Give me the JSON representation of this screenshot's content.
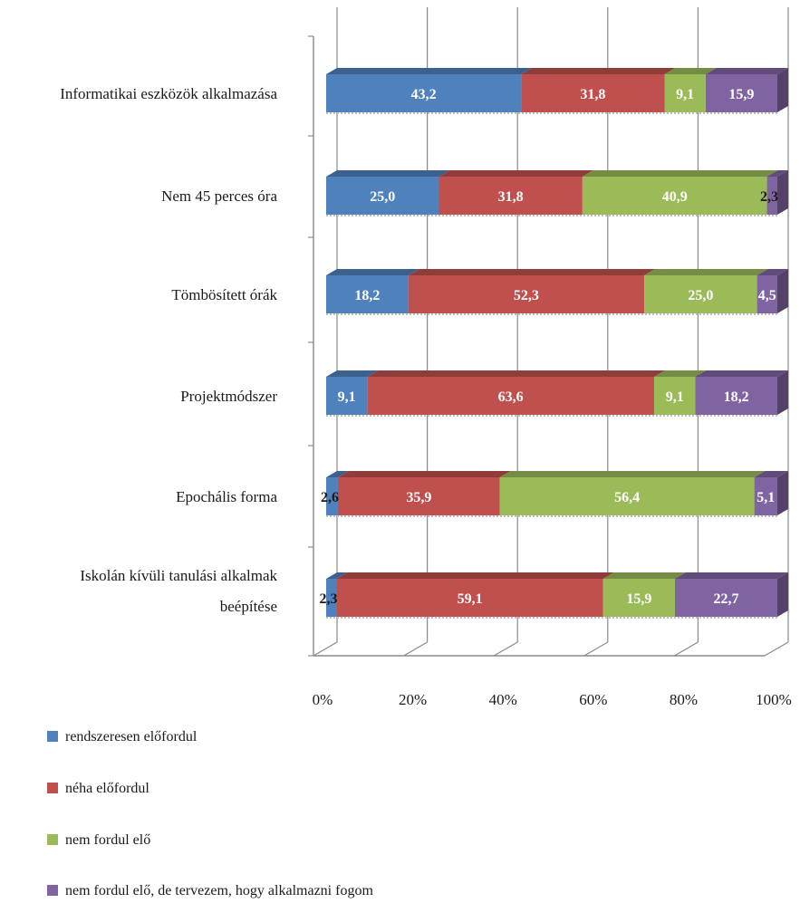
{
  "chart_data": {
    "type": "bar",
    "orientation": "horizontal",
    "stacked": "percent",
    "style": "3d",
    "categories": [
      "Informatikai eszközök alkalmazása",
      "Nem 45 perces óra",
      "Tömbösített órák",
      "Projektmódszer",
      "Epochális forma",
      "Iskolán kívüli tanulási alkalmak beépítése"
    ],
    "category_lines": [
      [
        "Informatikai eszközök alkalmazása"
      ],
      [
        "Nem 45 perces óra"
      ],
      [
        "Tömbösített órák"
      ],
      [
        "Projektmódszer"
      ],
      [
        "Epochális forma"
      ],
      [
        "Iskolán kívüli tanulási alkalmak",
        "beépítése"
      ]
    ],
    "series": [
      {
        "name": "rendszeresen előfordul",
        "color": "#4f81bd",
        "values": [
          43.2,
          25.0,
          18.2,
          9.1,
          2.6,
          2.3
        ],
        "labels": [
          "43,2",
          "25,0",
          "18,2",
          "9,1",
          "2,6",
          "2,3"
        ]
      },
      {
        "name": "néha előfordul",
        "color": "#c0504d",
        "values": [
          31.8,
          31.8,
          52.3,
          63.6,
          35.9,
          59.1
        ],
        "labels": [
          "31,8",
          "31,8",
          "52,3",
          "63,6",
          "35,9",
          "59,1"
        ]
      },
      {
        "name": "nem fordul elő",
        "color": "#9bbb59",
        "values": [
          9.1,
          40.9,
          25.0,
          9.1,
          56.4,
          15.9
        ],
        "labels": [
          "9,1",
          "40,9",
          "25,0",
          "9,1",
          "56,4",
          "15,9"
        ]
      },
      {
        "name": "nem fordul elő, de tervezem, hogy alkalmazni fogom",
        "color": "#8064a2",
        "values": [
          15.9,
          2.3,
          4.5,
          18.2,
          5.1,
          22.7
        ],
        "labels": [
          "15,9",
          "2,3",
          "4,5",
          "18,2",
          "5,1",
          "22,7"
        ]
      }
    ],
    "x_ticks": [
      "0%",
      "20%",
      "40%",
      "60%",
      "80%",
      "100%"
    ],
    "xlim": [
      0,
      100
    ],
    "grid": true,
    "legend": "bottom-left"
  }
}
